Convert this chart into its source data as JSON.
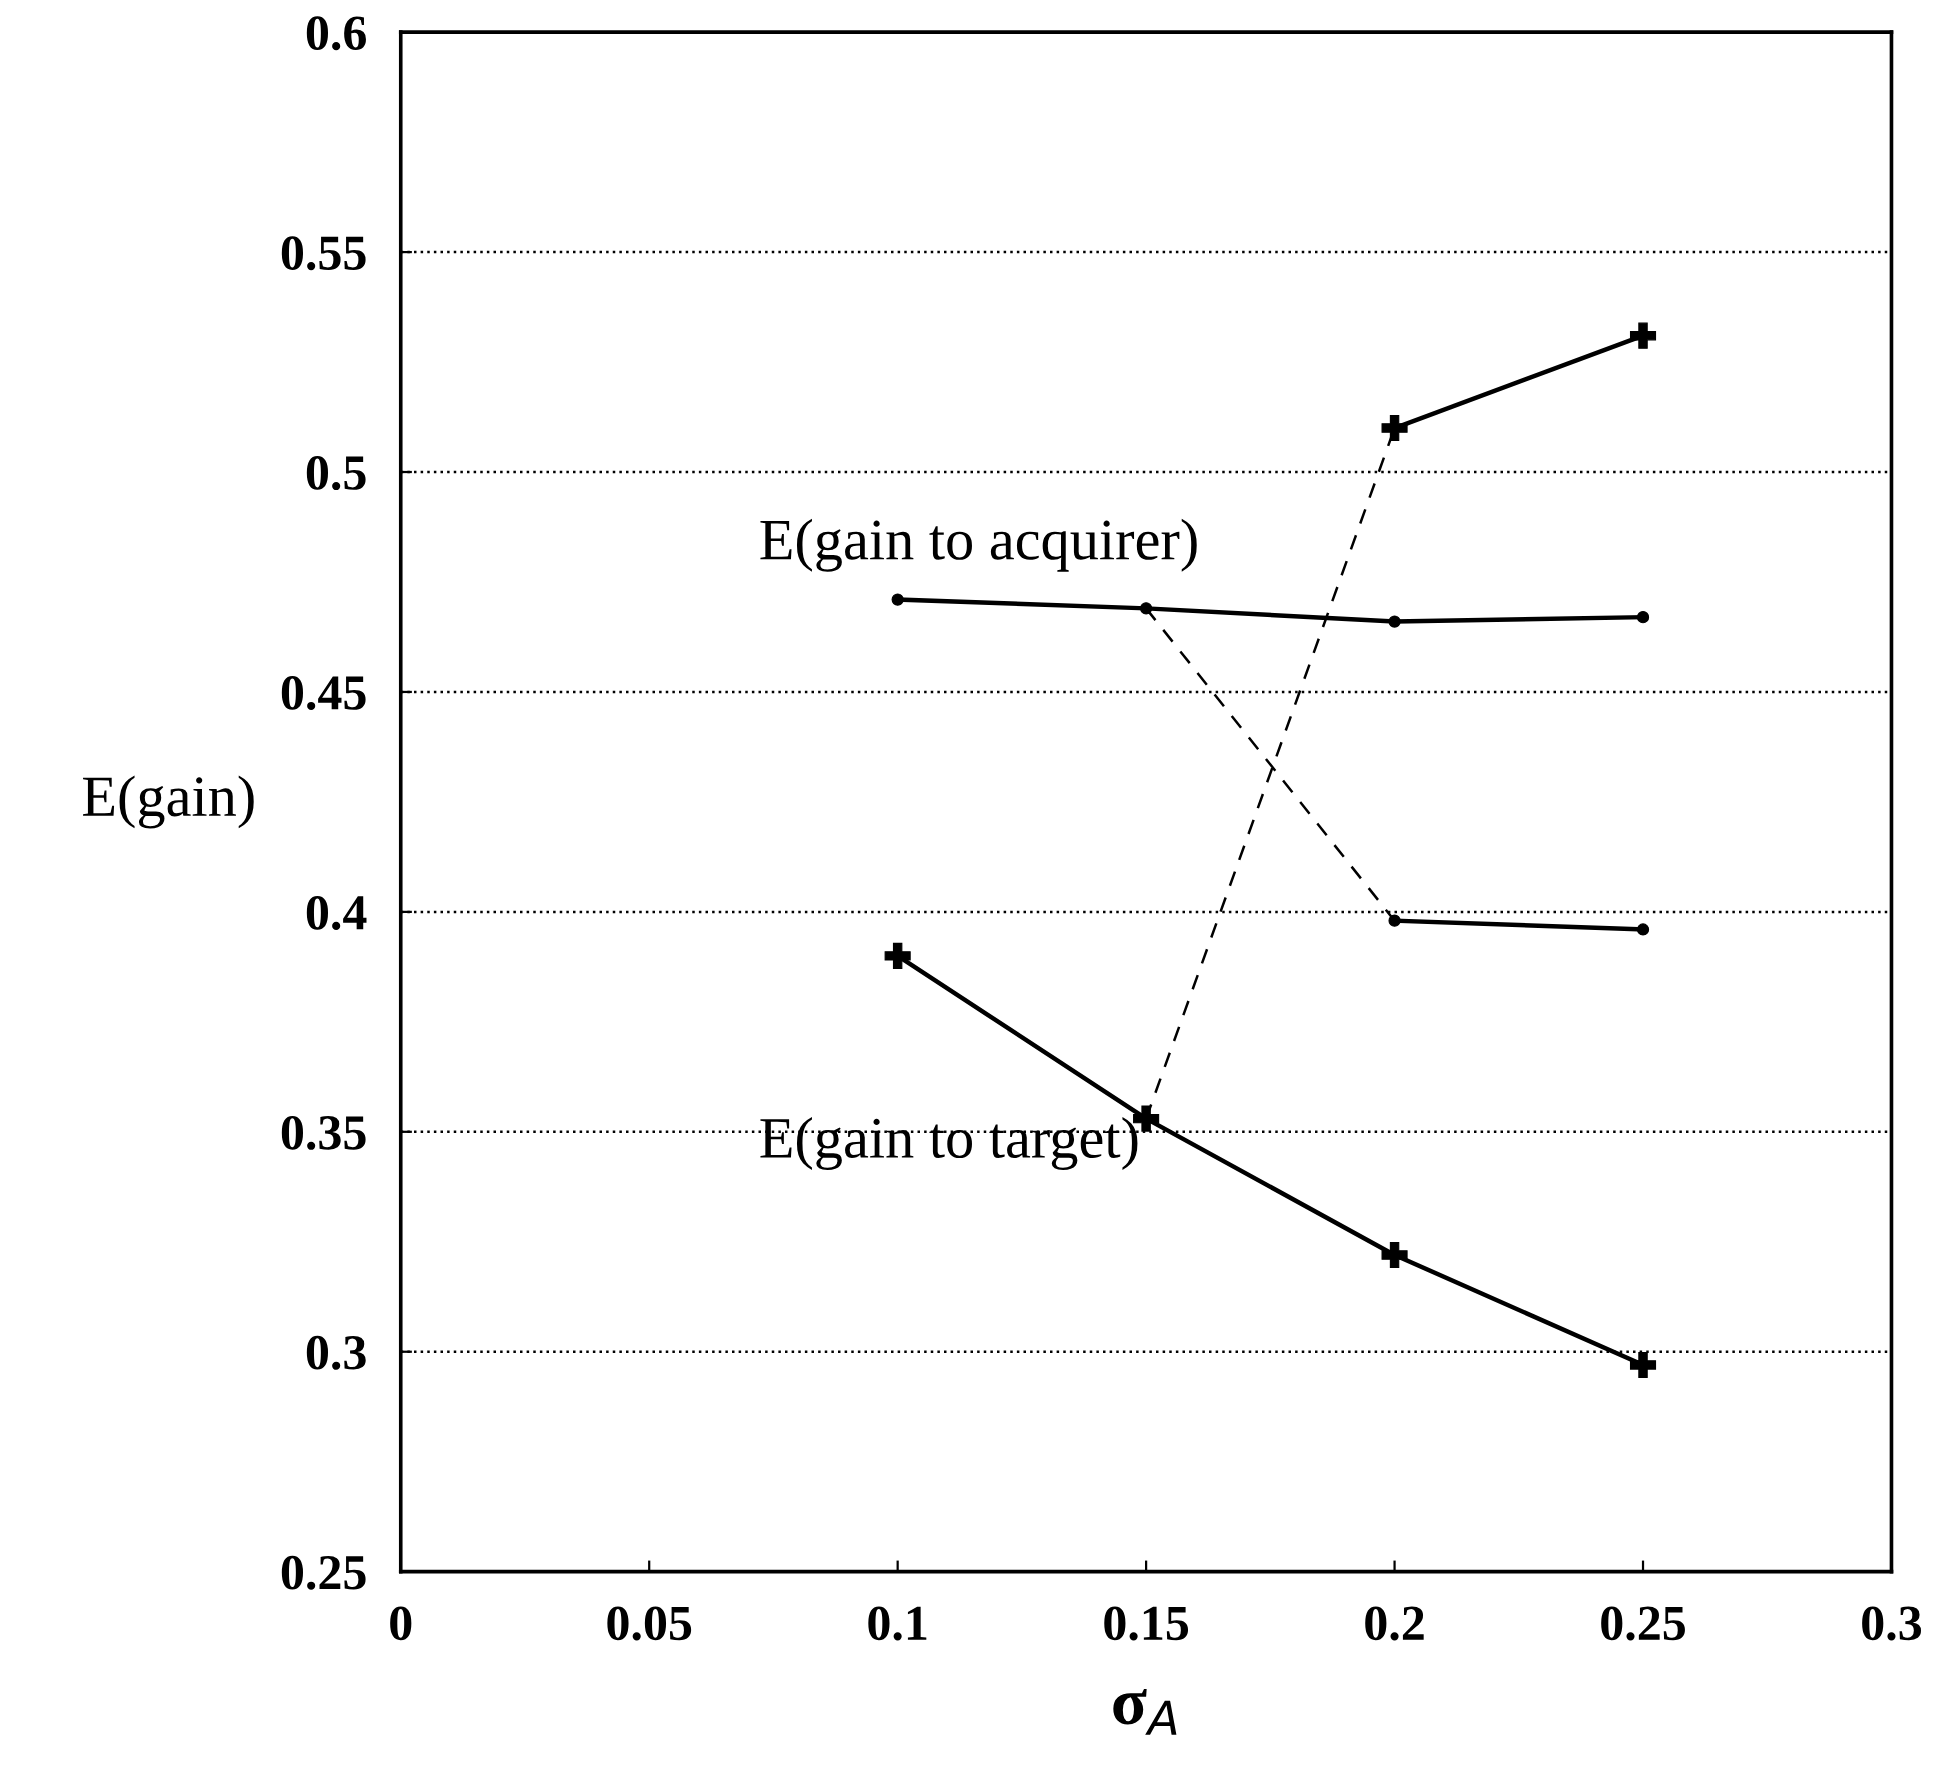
{
  "chart_data": {
    "type": "line",
    "xlabel": "σ$_{A}$",
    "ylabel": "E(gain)",
    "xlim": [
      0,
      0.3
    ],
    "xticks": [
      0,
      0.05,
      0.1,
      0.15,
      0.2,
      0.25,
      0.3
    ],
    "ylim": [
      0.25,
      0.6
    ],
    "yticks": [
      0.25,
      0.3,
      0.35,
      0.4,
      0.45,
      0.5,
      0.55,
      0.6
    ],
    "grid": "y",
    "series": [
      {
        "name": "E(gain to acquirer)",
        "color": "#000000",
        "x": [
          0.1,
          0.15,
          0.2,
          0.25
        ],
        "values": [
          0.471,
          0.469,
          0.466,
          0.467
        ],
        "marker": "circle",
        "line_style": "solid"
      },
      {
        "color": "#000000",
        "x": [
          0.2,
          0.25
        ],
        "values": [
          0.398,
          0.396
        ],
        "marker": "circle",
        "line_style": "solid"
      },
      {
        "color": "#000000",
        "x": [
          0.15,
          0.2
        ],
        "values": [
          0.469,
          0.398
        ],
        "marker": "none",
        "line_style": "dashed"
      },
      {
        "name": "E(gain to target)",
        "color": "#000000",
        "x": [
          0.1,
          0.15,
          0.2,
          0.25
        ],
        "values": [
          0.39,
          0.353,
          0.322,
          0.297
        ],
        "marker": "cross",
        "line_style": "solid"
      },
      {
        "color": "#000000",
        "x": [
          0.2,
          0.25
        ],
        "values": [
          0.51,
          0.531
        ],
        "marker": "cross",
        "line_style": "solid"
      },
      {
        "color": "#000000",
        "x": [
          0.15,
          0.2
        ],
        "values": [
          0.353,
          0.51
        ],
        "marker": "none",
        "line_style": "dashed"
      }
    ]
  }
}
